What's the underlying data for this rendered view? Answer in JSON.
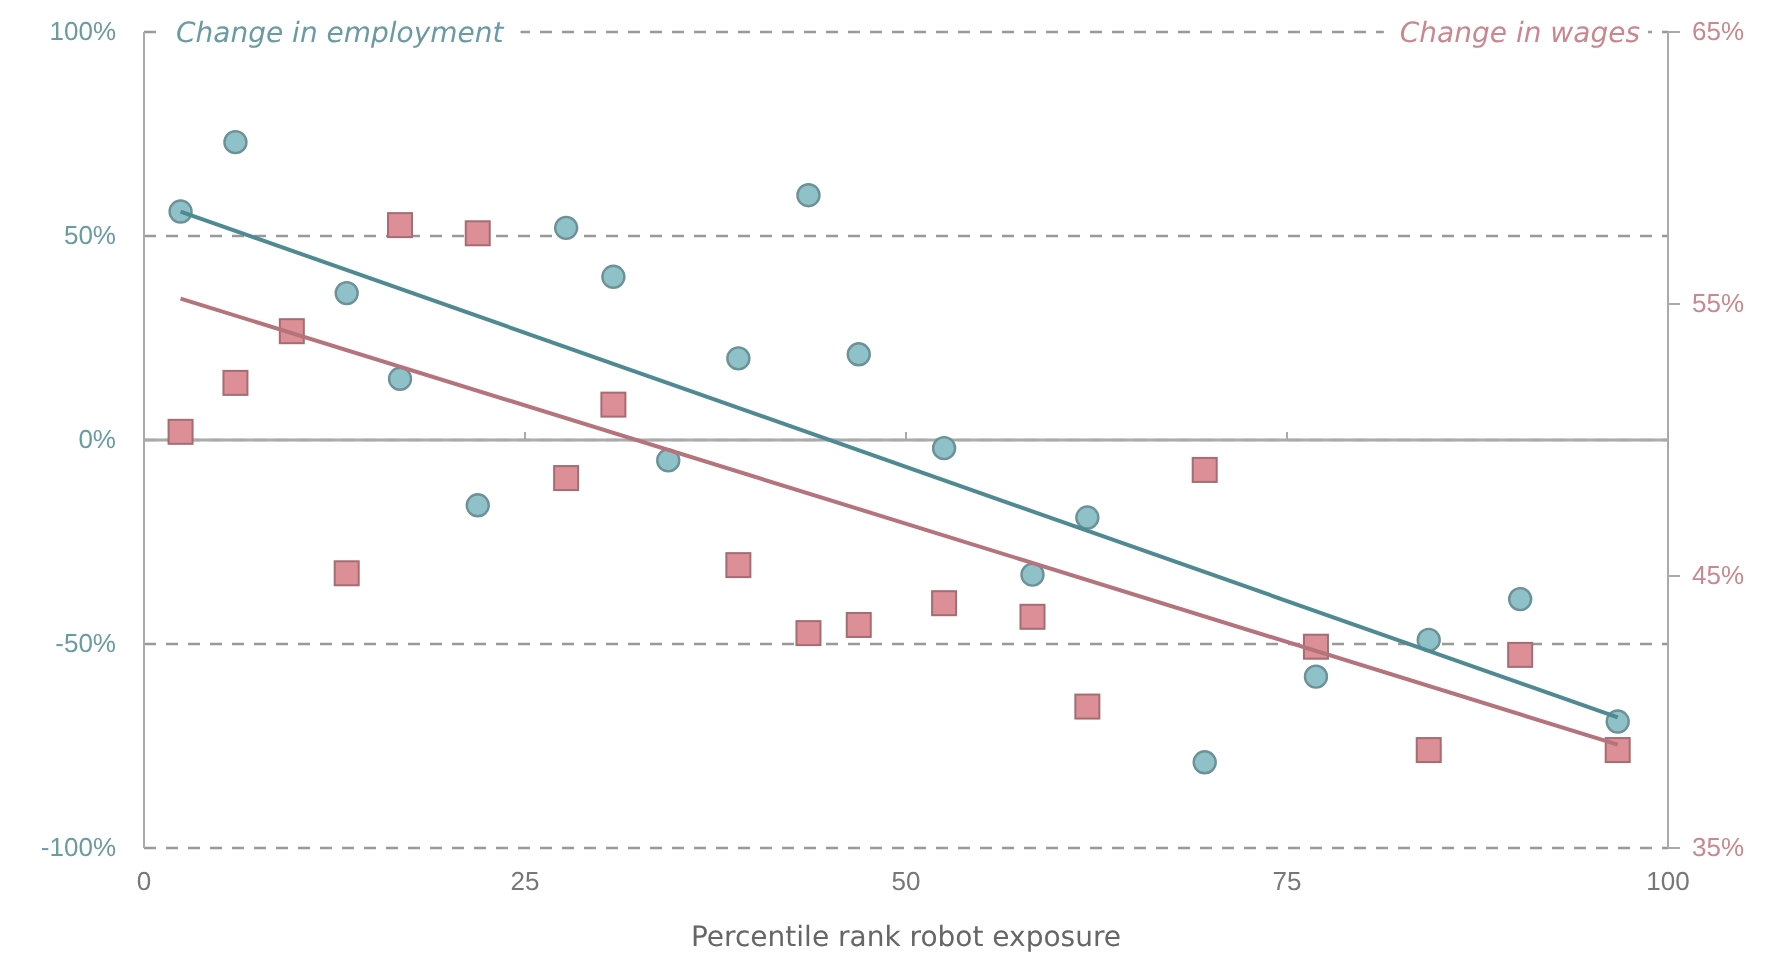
{
  "chart_data": {
    "type": "scatter",
    "xlabel": "Percentile rank robot exposure",
    "ylabel": "Change in employment",
    "y2label": "Change in wages",
    "xlim": [
      0,
      100
    ],
    "xticks": [
      0,
      25,
      50,
      75,
      100
    ],
    "ylim": [
      -100,
      100
    ],
    "yticks": [
      {
        "value": -100,
        "label": "-100%"
      },
      {
        "value": -50,
        "label": "-50%"
      },
      {
        "value": 0,
        "label": "0%"
      },
      {
        "value": 50,
        "label": "50%"
      },
      {
        "value": 100,
        "label": "100%"
      }
    ],
    "y2lim": [
      35,
      65
    ],
    "y2ticks": [
      {
        "value": 35,
        "label": "35%"
      },
      {
        "value": 45,
        "label": "45%"
      },
      {
        "value": 55,
        "label": "55%"
      },
      {
        "value": 65,
        "label": "65%"
      }
    ],
    "grid": "y",
    "line_style": "dashed",
    "ref_lines": [
      {
        "axis": "y",
        "value": 0,
        "color": "#aaaaaa",
        "line_style": "solid"
      }
    ],
    "series": [
      {
        "marker": "circle",
        "color": "#8fc1c9",
        "x": [
          2.4,
          6,
          13.3,
          16.8,
          21.9,
          27.7,
          30.8,
          34.4,
          39,
          43.6,
          46.9,
          52.5,
          58.3,
          61.9,
          69.6,
          76.9,
          84.3,
          90.3,
          96.7
        ],
        "values": [
          56,
          73,
          36,
          15,
          -16,
          52,
          40,
          -5,
          20,
          60,
          21,
          -2,
          -33,
          -19,
          -79,
          -58,
          -49,
          -39,
          -69
        ]
      },
      {
        "marker": "square",
        "color": "#dc8f96",
        "axis": "y2",
        "x": [
          2.4,
          6,
          9.7,
          13.3,
          16.8,
          21.9,
          27.7,
          30.8,
          39,
          43.6,
          46.9,
          52.5,
          58.3,
          61.9,
          69.6,
          76.9,
          84.3,
          90.3,
          96.7
        ],
        "values": [
          50.3,
          52.1,
          54.0,
          45.1,
          57.9,
          57.6,
          48.6,
          51.3,
          45.4,
          42.9,
          43.2,
          44.0,
          43.5,
          40.2,
          48.9,
          42.4,
          38.6,
          42.1,
          38.6
        ]
      },
      {
        "type": "line",
        "line_style": "solid",
        "color": "#4f8a93",
        "x": [
          2.4,
          96.7
        ],
        "values": [
          56,
          -68
        ]
      },
      {
        "type": "line",
        "line_style": "solid",
        "color": "#b5737b",
        "axis": "y2",
        "x": [
          2.4,
          96.7
        ],
        "values": [
          55.2,
          38.8
        ]
      }
    ]
  }
}
